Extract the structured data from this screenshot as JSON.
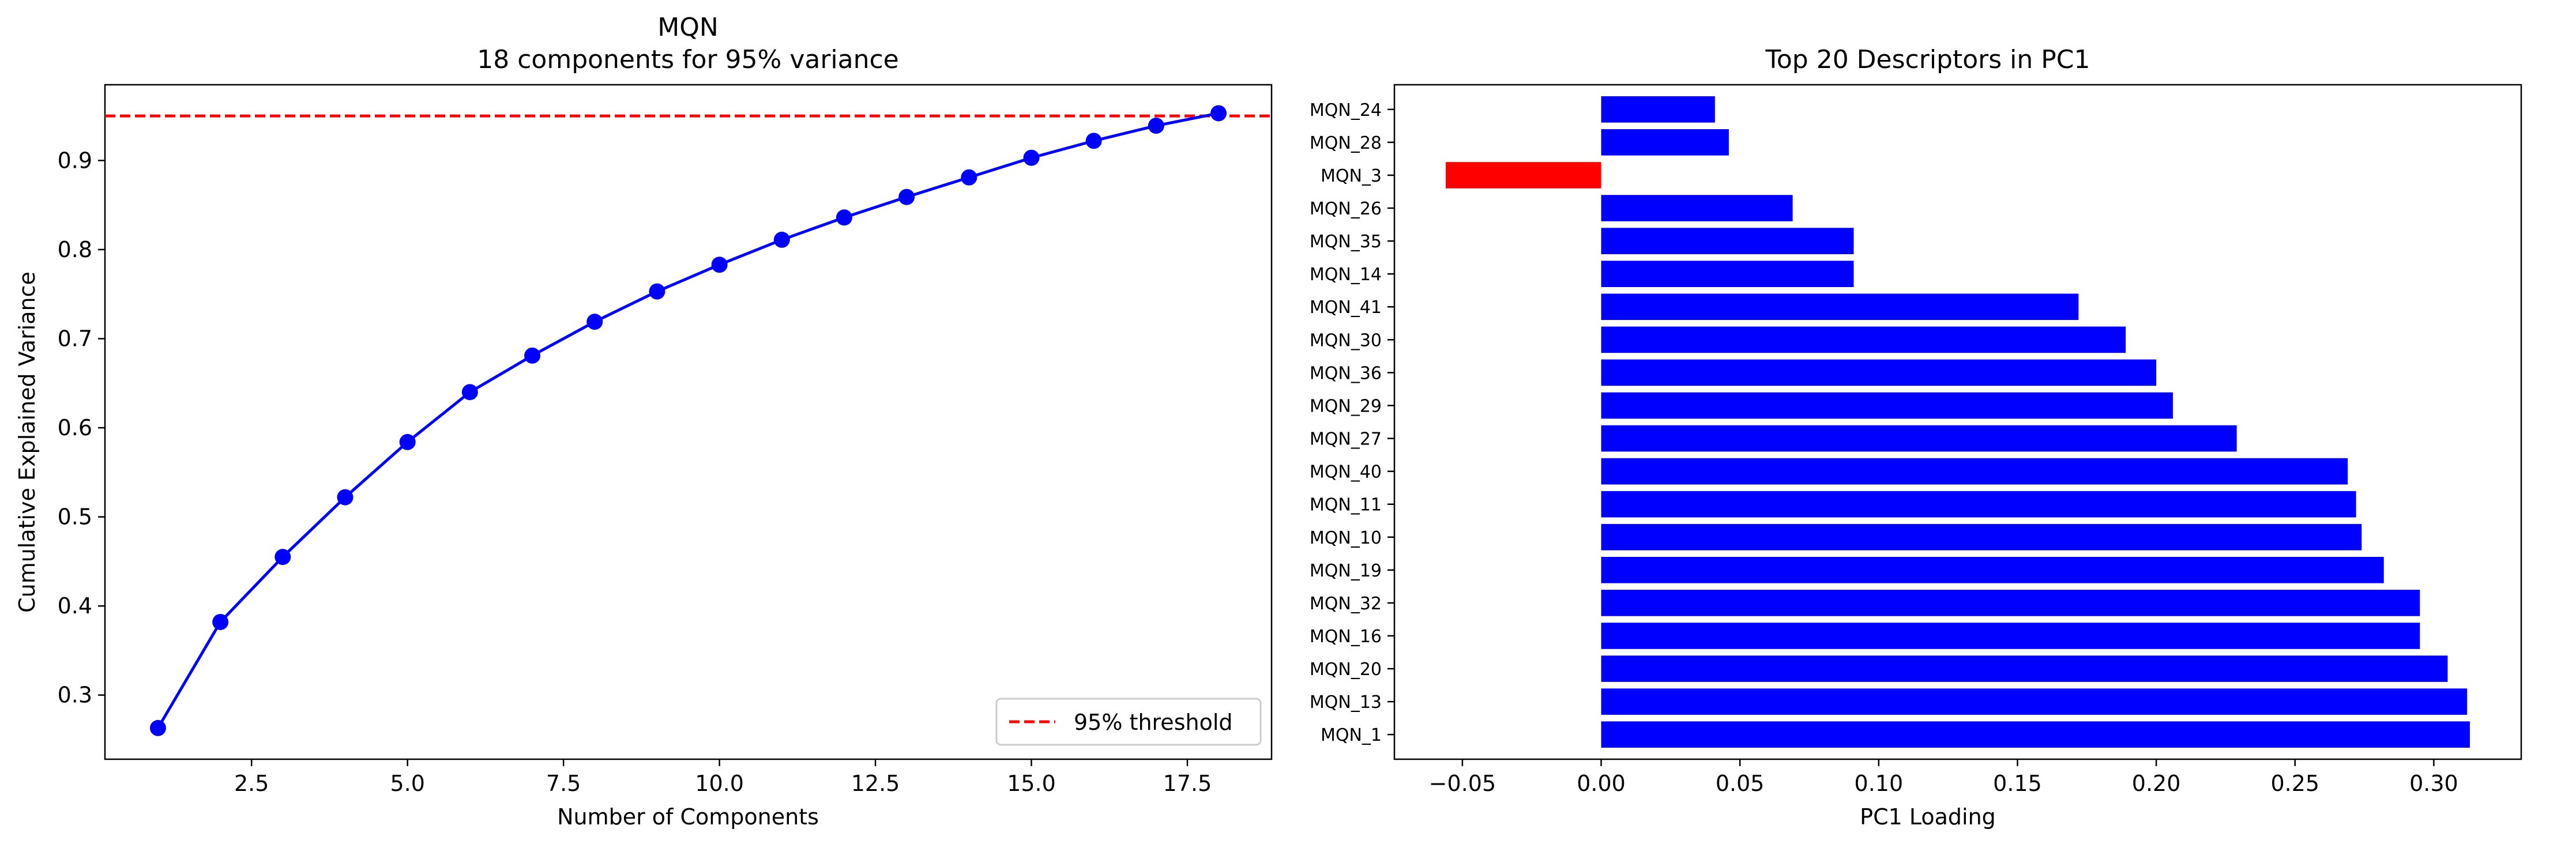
{
  "chart_data": [
    {
      "type": "line",
      "title": "MQN",
      "subtitle": "18 components for 95% variance",
      "xlabel": "Number of Components",
      "ylabel": "Cumulative Explained Variance",
      "xlim": [
        0.15,
        18.85
      ],
      "ylim": [
        0.228,
        0.985
      ],
      "xticks": [
        2.5,
        5.0,
        7.5,
        10.0,
        12.5,
        15.0,
        17.5
      ],
      "xtick_labels": [
        "2.5",
        "5.0",
        "7.5",
        "10.0",
        "12.5",
        "15.0",
        "17.5"
      ],
      "yticks": [
        0.3,
        0.4,
        0.5,
        0.6,
        0.7,
        0.8,
        0.9
      ],
      "ytick_labels": [
        "0.3",
        "0.4",
        "0.5",
        "0.6",
        "0.7",
        "0.8",
        "0.9"
      ],
      "grid": false,
      "legend_placement": "lower-right",
      "series": [
        {
          "color": "#0000ff",
          "marker": "circle",
          "x": [
            1,
            2,
            3,
            4,
            5,
            6,
            7,
            8,
            9,
            10,
            11,
            12,
            13,
            14,
            15,
            16,
            17,
            18
          ],
          "y": [
            0.263,
            0.382,
            0.455,
            0.522,
            0.584,
            0.64,
            0.681,
            0.719,
            0.753,
            0.783,
            0.811,
            0.836,
            0.859,
            0.881,
            0.903,
            0.922,
            0.939,
            0.953
          ]
        }
      ],
      "threshold": {
        "value": 0.95,
        "label": "95% threshold",
        "color": "#ff0000",
        "style": "dashed"
      }
    },
    {
      "type": "bar",
      "orientation": "horizontal",
      "title": "Top 20 Descriptors in PC1",
      "xlabel": "PC1 Loading",
      "ylabel": "",
      "xlim": [
        -0.0745,
        0.3315
      ],
      "xticks": [
        -0.05,
        0.0,
        0.05,
        0.1,
        0.15,
        0.2,
        0.25,
        0.3
      ],
      "xtick_labels": [
        "−0.05",
        "0.00",
        "0.05",
        "0.10",
        "0.15",
        "0.20",
        "0.25",
        "0.30"
      ],
      "grid": false,
      "positive_color": "#0000ff",
      "negative_color": "#ff0000",
      "categories": [
        "MQN_1",
        "MQN_13",
        "MQN_20",
        "MQN_16",
        "MQN_32",
        "MQN_19",
        "MQN_10",
        "MQN_11",
        "MQN_40",
        "MQN_27",
        "MQN_29",
        "MQN_36",
        "MQN_30",
        "MQN_41",
        "MQN_14",
        "MQN_35",
        "MQN_26",
        "MQN_3",
        "MQN_28",
        "MQN_24"
      ],
      "values": [
        0.313,
        0.312,
        0.305,
        0.295,
        0.295,
        0.282,
        0.274,
        0.272,
        0.269,
        0.229,
        0.206,
        0.2,
        0.189,
        0.172,
        0.091,
        0.091,
        0.069,
        -0.056,
        0.046,
        0.041
      ]
    }
  ]
}
